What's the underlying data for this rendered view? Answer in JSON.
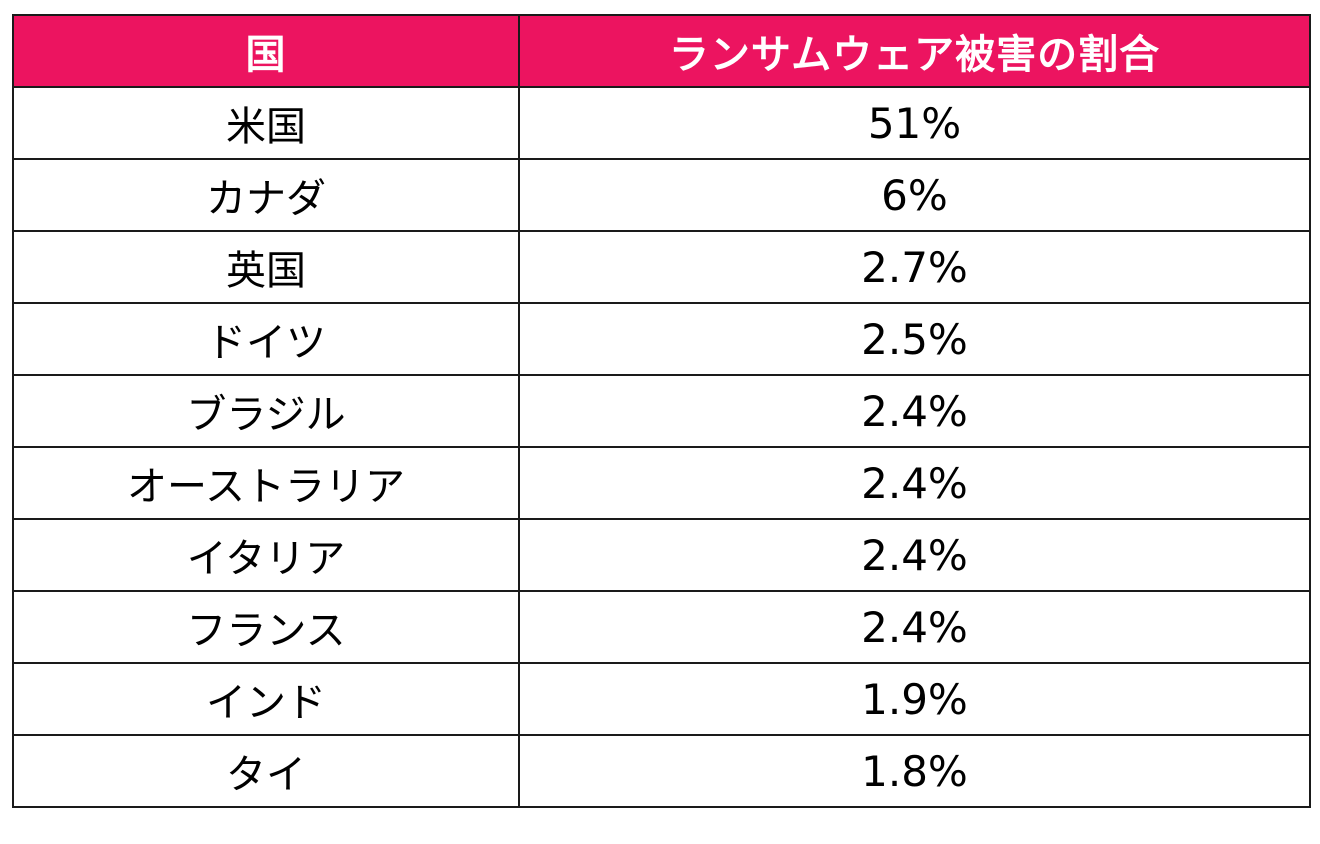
{
  "table": {
    "header": {
      "country": "国",
      "ratio": "ランサムウェア被害の割合"
    },
    "rows": [
      {
        "country": "米国",
        "ratio": "51%"
      },
      {
        "country": "カナダ",
        "ratio": "6%"
      },
      {
        "country": "英国",
        "ratio": "2.7%"
      },
      {
        "country": "ドイツ",
        "ratio": "2.5%"
      },
      {
        "country": "ブラジル",
        "ratio": "2.4%"
      },
      {
        "country": "オーストラリア",
        "ratio": "2.4%"
      },
      {
        "country": "イタリア",
        "ratio": "2.4%"
      },
      {
        "country": "フランス",
        "ratio": "2.4%"
      },
      {
        "country": "インド",
        "ratio": "1.9%"
      },
      {
        "country": "タイ",
        "ratio": "1.8%"
      }
    ]
  },
  "colors": {
    "header_background": "#ec1460",
    "header_text": "#ffffff",
    "border": "#1a1a1a"
  }
}
